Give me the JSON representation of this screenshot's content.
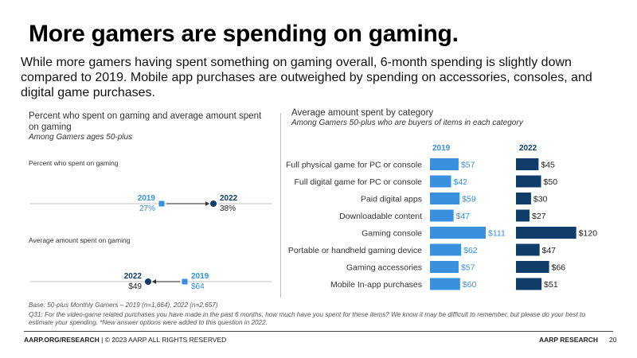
{
  "header": {
    "title": "More gamers are spending on gaming.",
    "subtitle": "While more gamers having spent something on gaming overall, 6-month spending is slightly down compared to 2019. Mobile app purchases are outweighed by spending on accessories, consoles, and digital game purchases."
  },
  "left_panel": {
    "title": "Percent who spent on gaming and average amount spent on gaming",
    "subtitle": "Among Gamers ages 50-plus",
    "section1_label": "Percent who spent on gaming",
    "section2_label": "Average amount spent on gaming"
  },
  "right_panel": {
    "title": "Average amount spent by category",
    "subtitle": "Among Gamers 50-plus who are buyers of items in each category"
  },
  "chart_data": [
    {
      "type": "dot",
      "series": [
        {
          "name": "2019",
          "value": 27,
          "label": "27%"
        },
        {
          "name": "2022",
          "value": 38,
          "label": "38%"
        }
      ]
    },
    {
      "type": "dot",
      "series": [
        {
          "name": "2022",
          "value": 49,
          "label": "$49"
        },
        {
          "name": "2019",
          "value": 64,
          "label": "$64"
        }
      ]
    },
    {
      "type": "bar",
      "categories": [
        "Full physical game for PC or console",
        "Full digital game for PC or console",
        "Paid digital apps",
        "Downloadable content",
        "Gaming console",
        "Portable or handheld gaming device",
        "Gaming accessories",
        "Mobile In-app purchases"
      ],
      "series": [
        {
          "name": "2019",
          "values": [
            57,
            42,
            59,
            47,
            111,
            62,
            57,
            60
          ],
          "labels": [
            "$57",
            "$42",
            "$59",
            "$47",
            "$111",
            "$62",
            "$57",
            "$60"
          ],
          "color": "#3a8fde"
        },
        {
          "name": "2022",
          "values": [
            45,
            50,
            30,
            27,
            120,
            47,
            66,
            51
          ],
          "labels": [
            "$45",
            "$50",
            "$30",
            "$27",
            "$120",
            "$47",
            "$66",
            "$51"
          ],
          "color": "#103c69"
        }
      ]
    }
  ],
  "colors": {
    "y2019": "#3a8fde",
    "y2022": "#103c69"
  },
  "footnotes": {
    "base": "Base: 50-plus Monthly Gamers – 2019 (n=1,664), 2022 (n=2,657)",
    "question": "Q31: For the video-game related purchases you have made in the past 6 months, how much have you spent for these items?  We know it may be difficult to remember, but please do your best to estimate your spending. *New answer options were added to this question in 2022."
  },
  "footer": {
    "left_bold": "AARP.ORG/RESEARCH",
    "left_rest": " | © 2023 AARP ALL RIGHTS RESERVED",
    "right": "AARP RESEARCH",
    "page": "20"
  }
}
